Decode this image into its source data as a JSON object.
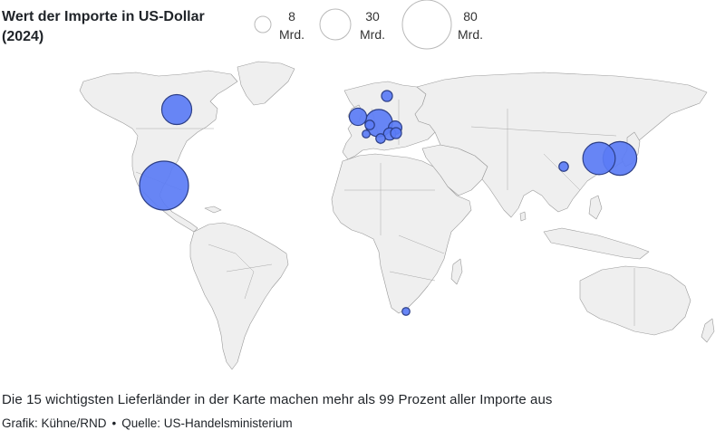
{
  "title": "Wert der Importe in US-Dollar (2024)",
  "legend": {
    "items": [
      {
        "value": "8",
        "unit": "Mrd.",
        "amount": 8
      },
      {
        "value": "30",
        "unit": "Mrd.",
        "amount": 30
      },
      {
        "value": "80",
        "unit": "Mrd.",
        "amount": 80
      }
    ]
  },
  "colors": {
    "bubble_fill": "#5b7cf5",
    "bubble_stroke": "#2c3e86",
    "land": "#efefef",
    "border": "#9a9a9a"
  },
  "map_data": {
    "bubbles": [
      {
        "name": "Mexiko",
        "amount": 80
      },
      {
        "name": "Kanada",
        "amount": 30
      },
      {
        "name": "Südkorea",
        "amount": 35
      },
      {
        "name": "Japan",
        "amount": 38
      },
      {
        "name": "China",
        "amount": 3
      },
      {
        "name": "Deutschland",
        "amount": 25
      },
      {
        "name": "Großbritannien",
        "amount": 10
      },
      {
        "name": "Frankreich",
        "amount": 2
      },
      {
        "name": "Belgien",
        "amount": 3
      },
      {
        "name": "Finnland",
        "amount": 4
      },
      {
        "name": "Österreich",
        "amount": 6
      },
      {
        "name": "Slowakei",
        "amount": 5
      },
      {
        "name": "Ungarn",
        "amount": 4
      },
      {
        "name": "Italien",
        "amount": 3
      },
      {
        "name": "Südafrika",
        "amount": 2
      }
    ]
  },
  "caption": "Die 15 wichtigsten Lieferländer in der Karte machen mehr als 99 Prozent aller Importe aus",
  "credit": {
    "grafik": "Grafik: Kühne/RND",
    "separator": "•",
    "quelle": "Quelle: US-Handelsministerium"
  }
}
